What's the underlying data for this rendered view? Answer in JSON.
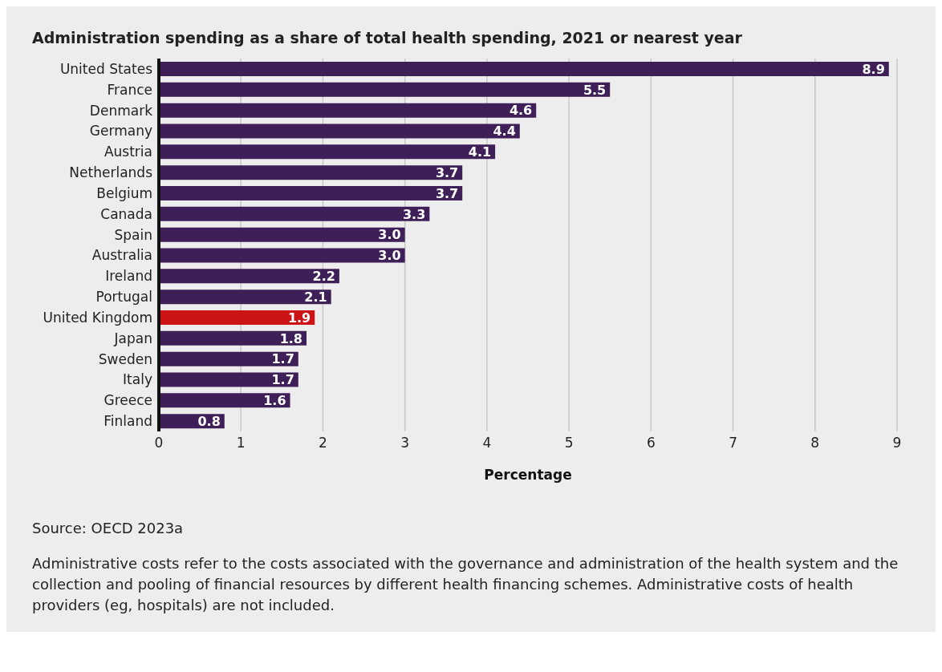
{
  "chart_data": {
    "type": "bar",
    "orientation": "horizontal",
    "title": "Administration spending as a share of total health spending, 2021 or nearest year",
    "xlabel": "Percentage",
    "categories": [
      "United States",
      "France",
      "Denmark",
      "Germany",
      "Austria",
      "Netherlands",
      "Belgium",
      "Canada",
      "Spain",
      "Australia",
      "Ireland",
      "Portugal",
      "United Kingdom",
      "Japan",
      "Sweden",
      "Italy",
      "Greece",
      "Finland"
    ],
    "values": [
      8.9,
      5.5,
      4.6,
      4.4,
      4.1,
      3.7,
      3.7,
      3.3,
      3.0,
      3.0,
      2.2,
      2.1,
      1.9,
      1.8,
      1.7,
      1.7,
      1.6,
      0.8
    ],
    "value_labels": [
      "8.9",
      "5.5",
      "4.6",
      "4.4",
      "4.1",
      "3.7",
      "3.7",
      "3.3",
      "3.0",
      "3.0",
      "2.2",
      "2.1",
      "1.9",
      "1.8",
      "1.7",
      "1.7",
      "1.6",
      "0.8"
    ],
    "colors": [
      "#3e1f58",
      "#3e1f58",
      "#3e1f58",
      "#3e1f58",
      "#3e1f58",
      "#3e1f58",
      "#3e1f58",
      "#3e1f58",
      "#3e1f58",
      "#3e1f58",
      "#3e1f58",
      "#3e1f58",
      "#cc1316",
      "#3e1f58",
      "#3e1f58",
      "#3e1f58",
      "#3e1f58",
      "#3e1f58"
    ],
    "xlim": [
      0,
      9
    ],
    "xticks": [
      0,
      1,
      2,
      3,
      4,
      5,
      6,
      7,
      8,
      9
    ],
    "grid": "x",
    "legend": false,
    "annotations": [
      "Source: OECD 2023a",
      "Administrative costs refer to the costs associated with the governance and administration of the health system and the collection and pooling of financial resources by different health financing schemes. Administrative costs of health providers (eg, hospitals) are not included."
    ]
  }
}
